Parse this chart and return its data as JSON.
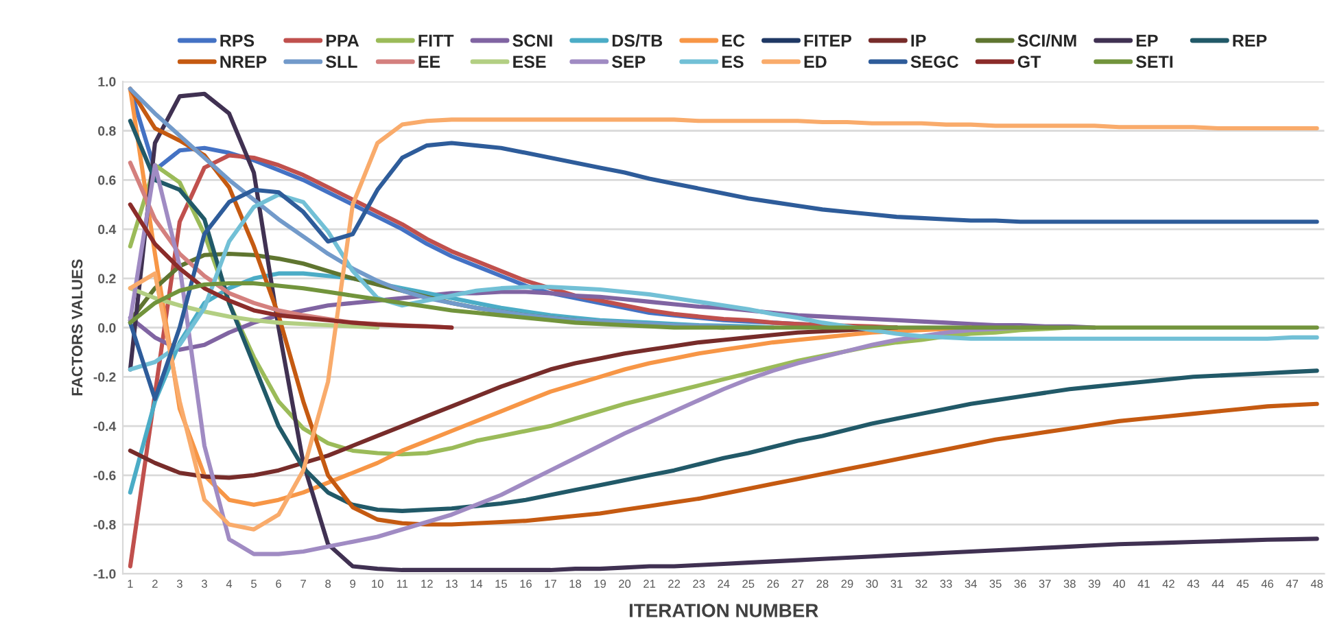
{
  "chart_data": {
    "type": "line",
    "xlabel": "ITERATION NUMBER",
    "ylabel": "FACTORS VALUES",
    "categories": [
      "1",
      "2",
      "3",
      "3",
      "4",
      "5",
      "6",
      "7",
      "8",
      "9",
      "10",
      "11",
      "12",
      "13",
      "14",
      "15",
      "16",
      "17",
      "18",
      "19",
      "20",
      "21",
      "22",
      "23",
      "24",
      "25",
      "26",
      "27",
      "28",
      "29",
      "30",
      "31",
      "32",
      "33",
      "34",
      "35",
      "36",
      "37",
      "38",
      "39",
      "40",
      "41",
      "42",
      "43",
      "44",
      "45",
      "46",
      "47",
      "48"
    ],
    "ylim": [
      -1.0,
      1.0
    ],
    "yticks": [
      {
        "value": -1.0,
        "label": "-1.0"
      },
      {
        "value": -0.8,
        "label": "-0.8"
      },
      {
        "value": -0.6,
        "label": "-0.6"
      },
      {
        "value": -0.4,
        "label": "-0.4"
      },
      {
        "value": -0.2,
        "label": "-0.2"
      },
      {
        "value": 0.0,
        "label": "0.0"
      },
      {
        "value": 0.2,
        "label": "0.2"
      },
      {
        "value": 0.4,
        "label": "0.4"
      },
      {
        "value": 0.6,
        "label": "0.6"
      },
      {
        "value": 0.8,
        "label": "0.8"
      },
      {
        "value": 1.0,
        "label": "1.0"
      }
    ],
    "grid": "y",
    "legend": "top",
    "marker": "none",
    "line_style": "solid",
    "series": [
      {
        "name": "RPS",
        "color": "#4472c4",
        "values": [
          0.97,
          0.64,
          0.72,
          0.73,
          0.71,
          0.68,
          0.64,
          0.6,
          0.55,
          0.5,
          0.45,
          0.4,
          0.34,
          0.29,
          0.25,
          0.21,
          0.17,
          0.14,
          0.12,
          0.1,
          0.08,
          0.06,
          0.05,
          0.04,
          0.03,
          0.025,
          0.02,
          0.015,
          0.01,
          0.005,
          0,
          null,
          null,
          null,
          null,
          null,
          null,
          null,
          null,
          null,
          null,
          null,
          null,
          null,
          null,
          null,
          null,
          null,
          null
        ]
      },
      {
        "name": "PPA",
        "color": "#c0504d",
        "values": [
          -0.97,
          -0.27,
          0.43,
          0.65,
          0.7,
          0.69,
          0.66,
          0.62,
          0.57,
          0.52,
          0.47,
          0.42,
          0.36,
          0.31,
          0.27,
          0.23,
          0.19,
          0.16,
          0.13,
          0.11,
          0.09,
          0.07,
          0.055,
          0.045,
          0.035,
          0.03,
          0.02,
          0.015,
          0.01,
          0.008,
          0.005,
          0,
          null,
          null,
          null,
          null,
          null,
          null,
          null,
          null,
          null,
          null,
          null,
          null,
          null,
          null,
          null,
          null,
          null
        ]
      },
      {
        "name": "FITT",
        "color": "#9bbb59",
        "values": [
          0.33,
          0.66,
          0.59,
          0.38,
          0.1,
          -0.12,
          -0.3,
          -0.41,
          -0.47,
          -0.5,
          -0.51,
          -0.515,
          -0.51,
          -0.49,
          -0.46,
          -0.44,
          -0.42,
          -0.4,
          -0.37,
          -0.34,
          -0.31,
          -0.285,
          -0.26,
          -0.235,
          -0.21,
          -0.185,
          -0.16,
          -0.135,
          -0.115,
          -0.095,
          -0.075,
          -0.06,
          -0.05,
          -0.035,
          -0.025,
          -0.02,
          -0.01,
          -0.005,
          0,
          null,
          null,
          null,
          null,
          null,
          null,
          null,
          null,
          null,
          null
        ]
      },
      {
        "name": "SCNI",
        "color": "#8064a2",
        "values": [
          0.04,
          -0.04,
          -0.09,
          -0.07,
          -0.02,
          0.02,
          0.05,
          0.07,
          0.09,
          0.1,
          0.11,
          0.12,
          0.13,
          0.14,
          0.14,
          0.145,
          0.145,
          0.14,
          0.13,
          0.125,
          0.115,
          0.105,
          0.095,
          0.085,
          0.08,
          0.07,
          0.06,
          0.05,
          0.045,
          0.04,
          0.035,
          0.03,
          0.025,
          0.02,
          0.015,
          0.01,
          0.01,
          0.005,
          0.005,
          0,
          null,
          null,
          null,
          null,
          null,
          null,
          null,
          null,
          null
        ]
      },
      {
        "name": "DS/TB",
        "color": "#4bacc6",
        "values": [
          -0.67,
          -0.3,
          -0.06,
          0.1,
          0.16,
          0.2,
          0.22,
          0.22,
          0.21,
          0.2,
          0.18,
          0.16,
          0.14,
          0.12,
          0.1,
          0.08,
          0.065,
          0.05,
          0.04,
          0.03,
          0.025,
          0.02,
          0.015,
          0.01,
          0.008,
          0.005,
          0,
          null,
          null,
          null,
          null,
          null,
          null,
          null,
          null,
          null,
          null,
          null,
          null,
          null,
          null,
          null,
          null,
          null,
          null,
          null,
          null,
          null,
          null
        ]
      },
      {
        "name": "EC",
        "color": "#f79646",
        "values": [
          0.97,
          0.3,
          -0.33,
          -0.6,
          -0.7,
          -0.72,
          -0.7,
          -0.67,
          -0.63,
          -0.59,
          -0.55,
          -0.5,
          -0.46,
          -0.42,
          -0.38,
          -0.34,
          -0.3,
          -0.26,
          -0.23,
          -0.2,
          -0.17,
          -0.145,
          -0.125,
          -0.105,
          -0.09,
          -0.075,
          -0.06,
          -0.05,
          -0.04,
          -0.03,
          -0.02,
          -0.015,
          -0.01,
          -0.005,
          0,
          null,
          null,
          null,
          null,
          null,
          null,
          null,
          null,
          null,
          null,
          null,
          null,
          null,
          null
        ]
      },
      {
        "name": "FITEP",
        "color": "#1f3864",
        "values": [
          null,
          null,
          null,
          null,
          null,
          null,
          null,
          null,
          null,
          null,
          null,
          null,
          null,
          null,
          null,
          null,
          null,
          null,
          null,
          null,
          null,
          null,
          null,
          null,
          null,
          null,
          null,
          null,
          null,
          null,
          null,
          null,
          null,
          null,
          null,
          null,
          null,
          null,
          null,
          null,
          null,
          null,
          null,
          null,
          null,
          null,
          null,
          null,
          null
        ]
      },
      {
        "name": "IP",
        "color": "#772c2a",
        "values": [
          -0.5,
          -0.55,
          -0.59,
          -0.605,
          -0.61,
          -0.6,
          -0.58,
          -0.55,
          -0.52,
          -0.48,
          -0.44,
          -0.4,
          -0.36,
          -0.32,
          -0.28,
          -0.24,
          -0.205,
          -0.17,
          -0.145,
          -0.125,
          -0.105,
          -0.09,
          -0.075,
          -0.06,
          -0.05,
          -0.04,
          -0.03,
          -0.02,
          -0.015,
          -0.01,
          -0.005,
          0,
          null,
          null,
          null,
          null,
          null,
          null,
          null,
          null,
          null,
          null,
          null,
          null,
          null,
          null,
          null,
          null,
          null
        ]
      },
      {
        "name": "SCI/NM",
        "color": "#5f7530",
        "values": [
          0.03,
          0.16,
          0.25,
          0.295,
          0.3,
          0.295,
          0.28,
          0.26,
          0.23,
          0.2,
          0.175,
          0.15,
          0.125,
          0.1,
          0.08,
          0.065,
          0.05,
          0.04,
          0.03,
          0.02,
          0.015,
          0.01,
          0.008,
          0.005,
          0,
          null,
          null,
          null,
          null,
          null,
          null,
          null,
          null,
          null,
          null,
          null,
          null,
          null,
          null,
          null,
          null,
          null,
          null,
          null,
          null,
          null,
          null,
          null,
          null
        ]
      },
      {
        "name": "EP",
        "color": "#403152",
        "values": [
          -0.17,
          0.75,
          0.94,
          0.95,
          0.87,
          0.63,
          0.0,
          -0.55,
          -0.88,
          -0.97,
          -0.98,
          -0.985,
          -0.985,
          -0.985,
          -0.985,
          -0.985,
          -0.985,
          -0.985,
          -0.98,
          -0.98,
          -0.975,
          -0.97,
          -0.97,
          -0.965,
          -0.96,
          -0.955,
          -0.95,
          -0.945,
          -0.94,
          -0.935,
          -0.93,
          -0.925,
          -0.92,
          -0.915,
          -0.91,
          -0.905,
          -0.9,
          -0.895,
          -0.89,
          -0.885,
          -0.88,
          -0.877,
          -0.874,
          -0.871,
          -0.868,
          -0.865,
          -0.862,
          -0.86,
          -0.858
        ]
      },
      {
        "name": "REP",
        "color": "#215968",
        "values": [
          0.84,
          0.6,
          0.56,
          0.44,
          0.1,
          -0.15,
          -0.4,
          -0.57,
          -0.67,
          -0.72,
          -0.74,
          -0.745,
          -0.74,
          -0.735,
          -0.725,
          -0.715,
          -0.7,
          -0.68,
          -0.66,
          -0.64,
          -0.62,
          -0.6,
          -0.58,
          -0.555,
          -0.53,
          -0.51,
          -0.485,
          -0.46,
          -0.44,
          -0.415,
          -0.39,
          -0.37,
          -0.35,
          -0.33,
          -0.31,
          -0.295,
          -0.28,
          -0.265,
          -0.25,
          -0.24,
          -0.23,
          -0.22,
          -0.21,
          -0.2,
          -0.195,
          -0.19,
          -0.185,
          -0.18,
          -0.175
        ]
      },
      {
        "name": "NREP",
        "color": "#c55a11",
        "values": [
          0.97,
          0.81,
          0.76,
          0.7,
          0.57,
          0.33,
          0.05,
          -0.3,
          -0.6,
          -0.73,
          -0.78,
          -0.795,
          -0.8,
          -0.8,
          -0.795,
          -0.79,
          -0.785,
          -0.775,
          -0.765,
          -0.755,
          -0.74,
          -0.725,
          -0.71,
          -0.695,
          -0.675,
          -0.655,
          -0.635,
          -0.615,
          -0.595,
          -0.575,
          -0.555,
          -0.535,
          -0.515,
          -0.495,
          -0.475,
          -0.455,
          -0.44,
          -0.425,
          -0.41,
          -0.395,
          -0.38,
          -0.37,
          -0.36,
          -0.35,
          -0.34,
          -0.33,
          -0.32,
          -0.315,
          -0.31
        ]
      },
      {
        "name": "SLL",
        "color": "#729aca",
        "values": [
          0.97,
          0.87,
          0.78,
          0.69,
          0.6,
          0.52,
          0.44,
          0.37,
          0.3,
          0.24,
          0.19,
          0.15,
          0.12,
          0.1,
          0.08,
          0.065,
          0.05,
          0.04,
          0.03,
          0.025,
          0.02,
          0.015,
          0.01,
          0.008,
          0.005,
          0,
          null,
          null,
          null,
          null,
          null,
          null,
          null,
          null,
          null,
          null,
          null,
          null,
          null,
          null,
          null,
          null,
          null,
          null,
          null,
          null,
          null,
          null,
          null
        ]
      },
      {
        "name": "EE",
        "color": "#d4807e",
        "values": [
          0.67,
          0.44,
          0.3,
          0.21,
          0.14,
          0.1,
          0.07,
          0.05,
          0.035,
          0.02,
          0.015,
          0.01,
          0.005,
          0,
          null,
          null,
          null,
          null,
          null,
          null,
          null,
          null,
          null,
          null,
          null,
          null,
          null,
          null,
          null,
          null,
          null,
          null,
          null,
          null,
          null,
          null,
          null,
          null,
          null,
          null,
          null,
          null,
          null,
          null,
          null,
          null,
          null,
          null,
          null
        ]
      },
      {
        "name": "ESE",
        "color": "#b3cf83",
        "values": [
          0.16,
          0.12,
          0.09,
          0.065,
          0.045,
          0.03,
          0.02,
          0.015,
          0.01,
          0.005,
          0,
          null,
          null,
          null,
          null,
          null,
          null,
          null,
          null,
          null,
          null,
          null,
          null,
          null,
          null,
          null,
          null,
          null,
          null,
          null,
          null,
          null,
          null,
          null,
          null,
          null,
          null,
          null,
          null,
          null,
          null,
          null,
          null,
          null,
          null,
          null,
          null,
          null,
          null
        ]
      },
      {
        "name": "SEP",
        "color": "#a08bc3",
        "values": [
          0.03,
          0.66,
          0.25,
          -0.48,
          -0.86,
          -0.92,
          -0.92,
          -0.91,
          -0.89,
          -0.87,
          -0.85,
          -0.82,
          -0.79,
          -0.76,
          -0.72,
          -0.68,
          -0.63,
          -0.58,
          -0.53,
          -0.48,
          -0.43,
          -0.385,
          -0.34,
          -0.295,
          -0.25,
          -0.21,
          -0.175,
          -0.145,
          -0.12,
          -0.095,
          -0.07,
          -0.05,
          -0.035,
          -0.02,
          -0.01,
          -0.005,
          0,
          null,
          null,
          null,
          null,
          null,
          null,
          null,
          null,
          null,
          null,
          null,
          null
        ]
      },
      {
        "name": "ES",
        "color": "#72c0d6",
        "values": [
          -0.17,
          -0.14,
          -0.07,
          0.08,
          0.35,
          0.49,
          0.54,
          0.51,
          0.39,
          0.23,
          0.12,
          0.09,
          0.11,
          0.13,
          0.15,
          0.16,
          0.165,
          0.165,
          0.16,
          0.155,
          0.145,
          0.135,
          0.12,
          0.105,
          0.09,
          0.075,
          0.055,
          0.04,
          0.02,
          0.005,
          -0.01,
          -0.025,
          -0.035,
          -0.04,
          -0.045,
          -0.045,
          -0.045,
          -0.045,
          -0.045,
          -0.045,
          -0.045,
          -0.045,
          -0.045,
          -0.045,
          -0.045,
          -0.045,
          -0.045,
          -0.04,
          -0.04
        ]
      },
      {
        "name": "ED",
        "color": "#f9ab6b",
        "values": [
          0.16,
          0.22,
          -0.3,
          -0.7,
          -0.8,
          -0.82,
          -0.76,
          -0.58,
          -0.22,
          0.5,
          0.75,
          0.825,
          0.84,
          0.845,
          0.845,
          0.845,
          0.845,
          0.845,
          0.845,
          0.845,
          0.845,
          0.845,
          0.845,
          0.84,
          0.84,
          0.84,
          0.84,
          0.84,
          0.835,
          0.835,
          0.83,
          0.83,
          0.83,
          0.825,
          0.825,
          0.82,
          0.82,
          0.82,
          0.82,
          0.82,
          0.815,
          0.815,
          0.815,
          0.815,
          0.81,
          0.81,
          0.81,
          0.81,
          0.81
        ]
      },
      {
        "name": "SEGC",
        "color": "#2e5c9a",
        "values": [
          0.02,
          -0.29,
          0.0,
          0.38,
          0.51,
          0.56,
          0.55,
          0.47,
          0.35,
          0.38,
          0.56,
          0.69,
          0.74,
          0.75,
          0.74,
          0.73,
          0.71,
          0.69,
          0.67,
          0.65,
          0.63,
          0.605,
          0.585,
          0.565,
          0.545,
          0.525,
          0.51,
          0.495,
          0.48,
          0.47,
          0.46,
          0.45,
          0.445,
          0.44,
          0.435,
          0.435,
          0.43,
          0.43,
          0.43,
          0.43,
          0.43,
          0.43,
          0.43,
          0.43,
          0.43,
          0.43,
          0.43,
          0.43,
          0.43
        ]
      },
      {
        "name": "GT",
        "color": "#8b2c2a",
        "values": [
          0.5,
          0.34,
          0.24,
          0.16,
          0.11,
          0.07,
          0.05,
          0.04,
          0.03,
          0.02,
          0.012,
          0.008,
          0.005,
          0,
          null,
          null,
          null,
          null,
          null,
          null,
          null,
          null,
          null,
          null,
          null,
          null,
          null,
          null,
          null,
          null,
          null,
          null,
          null,
          null,
          null,
          null,
          null,
          null,
          null,
          null,
          null,
          null,
          null,
          null,
          null,
          null,
          null,
          null,
          null
        ]
      },
      {
        "name": "SETI",
        "color": "#72943c",
        "values": [
          0.02,
          0.1,
          0.15,
          0.175,
          0.18,
          0.18,
          0.17,
          0.16,
          0.145,
          0.13,
          0.115,
          0.1,
          0.085,
          0.07,
          0.06,
          0.05,
          0.04,
          0.03,
          0.02,
          0.015,
          0.01,
          0.005,
          0,
          0,
          0,
          0,
          0,
          0,
          0,
          0,
          0,
          0,
          0,
          0,
          0,
          0,
          0,
          0,
          0,
          0,
          0,
          0,
          0,
          0,
          0,
          0,
          0,
          0,
          0
        ]
      }
    ]
  }
}
